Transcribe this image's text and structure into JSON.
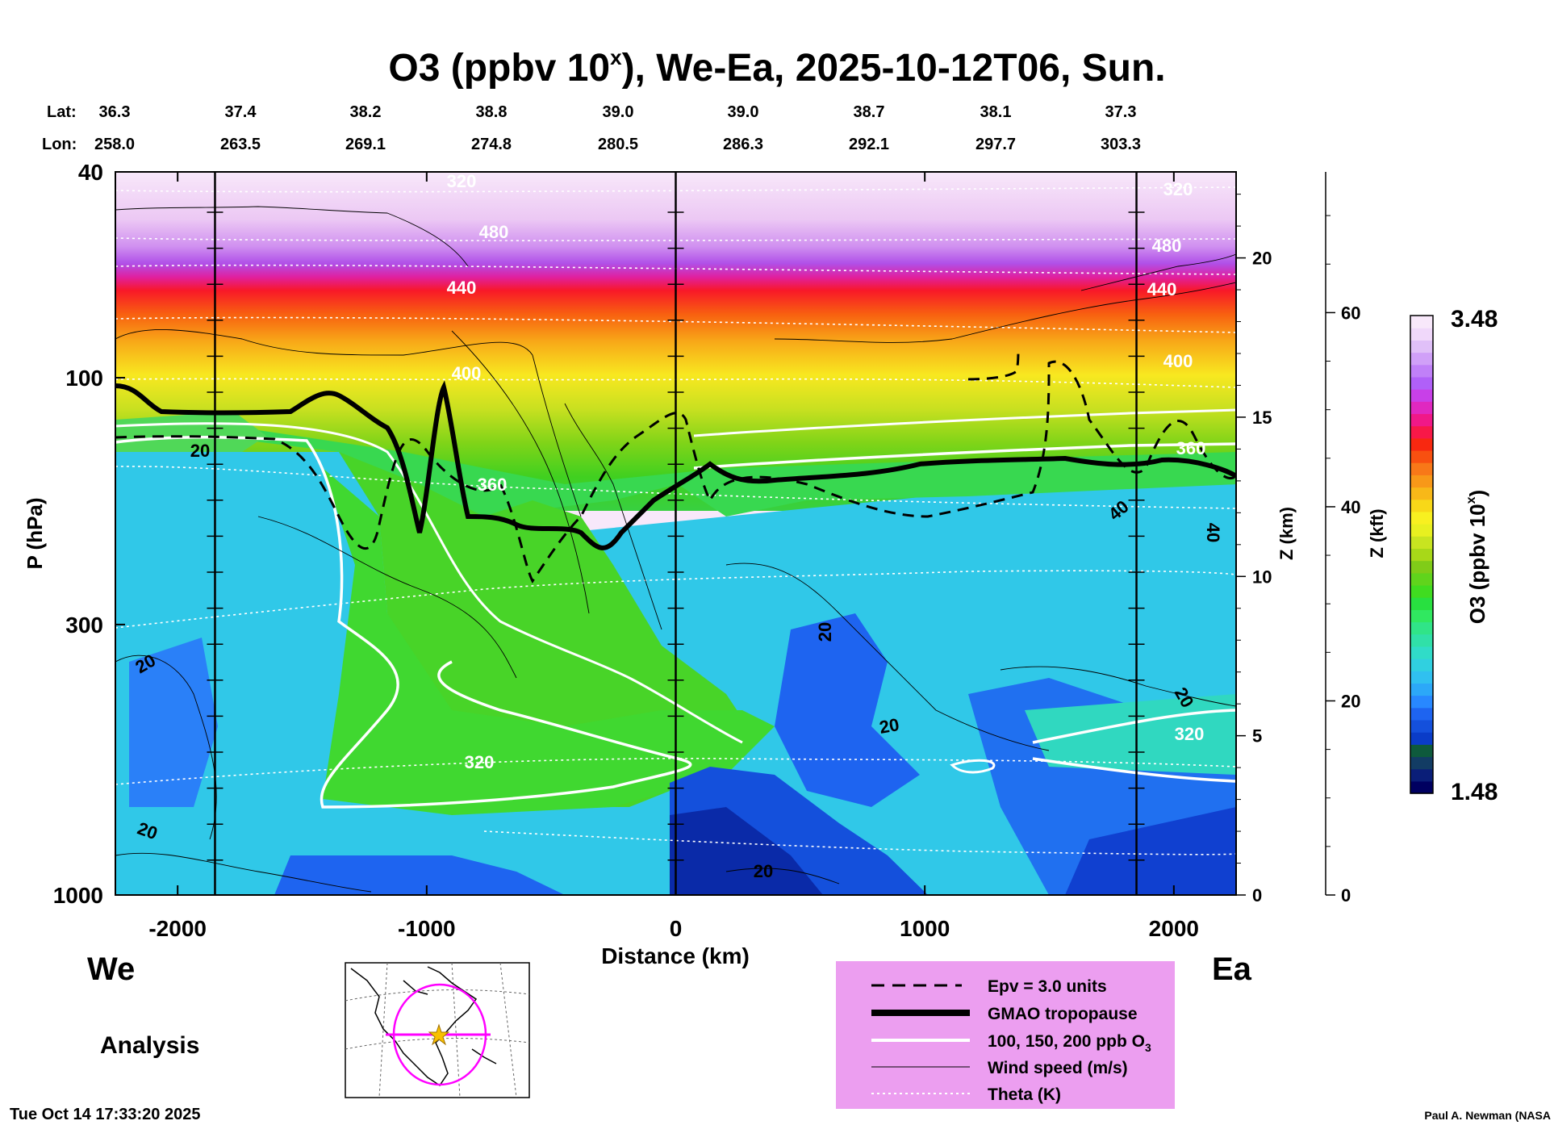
{
  "chart_data": {
    "type": "heatmap",
    "title_main": "O3 (ppbv 10",
    "title_sup": "x",
    "title_rest": "), We-Ea, 2025-10-12T06, Sun.",
    "lat_label": "Lat:",
    "lon_label": "Lon:",
    "lat_values": [
      "36.3",
      "37.4",
      "38.2",
      "38.8",
      "39.0",
      "39.0",
      "38.7",
      "38.1",
      "37.3"
    ],
    "lon_values": [
      "258.0",
      "263.5",
      "269.1",
      "274.8",
      "280.5",
      "286.3",
      "292.1",
      "297.7",
      "303.3"
    ],
    "xlabel": "Distance (km)",
    "xlim": [
      -2250,
      2250
    ],
    "x_ticks": [
      -2000,
      -1000,
      0,
      1000,
      2000
    ],
    "x_tick_labels": [
      "-2000",
      "-1000",
      "0",
      "1000",
      "2000"
    ],
    "ylabel": "P (hPa)",
    "ylim": [
      1000,
      40
    ],
    "y_ticks": [
      40,
      100,
      300,
      1000
    ],
    "y_tick_labels": [
      "40",
      "100",
      "300",
      "1000"
    ],
    "z_km_label": "Z (km)",
    "z_km_ticks": [
      0,
      5,
      10,
      15,
      20
    ],
    "z_km_tick_labels": [
      "0",
      "5",
      "10",
      "15",
      "20"
    ],
    "z_kft_label": "Z (kft)",
    "z_kft_ticks": [
      0,
      20,
      40,
      60
    ],
    "z_kft_tick_labels": [
      "0",
      "20",
      "40",
      "60"
    ],
    "colorbar": {
      "label_main": "O3 (ppbv 10",
      "label_sup": "x",
      "label_end": ")",
      "min": 1.48,
      "max": 3.48,
      "min_label": "1.48",
      "max_label": "3.48",
      "colors": [
        "#000060",
        "#0a1e78",
        "#123c64",
        "#0e5a3c",
        "#0a3cc8",
        "#1450dc",
        "#1e64f0",
        "#2888ff",
        "#2ca8f8",
        "#30c0f0",
        "#30d0e0",
        "#30dcc8",
        "#30e0a8",
        "#30e488",
        "#30e860",
        "#28e040",
        "#40dc20",
        "#60d41c",
        "#80cc18",
        "#a8d818",
        "#c8e420",
        "#e8f020",
        "#f8f020",
        "#f8d818",
        "#f8b818",
        "#f89818",
        "#f87818",
        "#f85010",
        "#f82810",
        "#f81848",
        "#f01888",
        "#e028c0",
        "#c840e8",
        "#b060f8",
        "#c080f8",
        "#d0a0f8",
        "#e0c0f8",
        "#f0d8fa",
        "#f8e8fa"
      ]
    },
    "theta_labels": [
      "320",
      "480",
      "440",
      "400",
      "360",
      "320",
      "320",
      "480",
      "440",
      "400",
      "360",
      "320"
    ],
    "wind_labels": [
      "20",
      "20",
      "20",
      "20",
      "20",
      "20",
      "20",
      "40",
      "40"
    ],
    "vertical_line_x_km": [
      -1850,
      0,
      1850
    ],
    "legend": {
      "entries": [
        "Epv = 3.0 units",
        "GMAO tropopause",
        "100, 150, 200 ppb O",
        "Wind speed (m/s)",
        "Theta (K)"
      ],
      "o3_sub": "3"
    },
    "west_label": "We",
    "east_label": "Ea",
    "analysis_label": "Analysis",
    "timestamp": "Tue Oct 14 17:33:20 2025",
    "credit": "Paul A. Newman (NASA"
  }
}
